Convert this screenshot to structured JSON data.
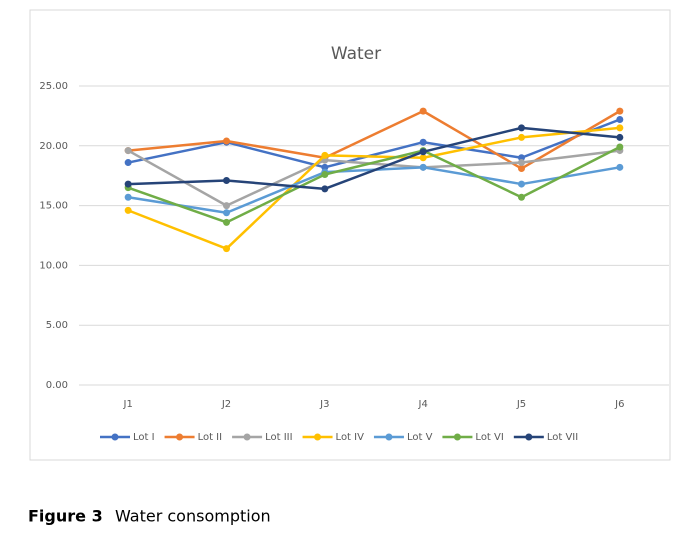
{
  "chart_data": {
    "type": "line",
    "title": "Water",
    "categories": [
      "J1",
      "J2",
      "J3",
      "J4",
      "J5",
      "J6"
    ],
    "series": [
      {
        "name": "Lot I",
        "color": "#4472c4",
        "values": [
          18.6,
          20.3,
          18.2,
          20.3,
          19.0,
          22.2
        ]
      },
      {
        "name": "Lot II",
        "color": "#ed7d31",
        "values": [
          19.6,
          20.4,
          19.0,
          22.9,
          18.1,
          22.9
        ]
      },
      {
        "name": "Lot III",
        "color": "#a5a5a5",
        "values": [
          19.6,
          15.0,
          18.8,
          18.2,
          18.6,
          19.6
        ]
      },
      {
        "name": "Lot IV",
        "color": "#ffc000",
        "values": [
          14.6,
          11.4,
          19.2,
          19.0,
          20.7,
          21.5
        ]
      },
      {
        "name": "Lot V",
        "color": "#5b9bd5",
        "values": [
          15.7,
          14.4,
          17.8,
          18.2,
          16.8,
          18.2
        ]
      },
      {
        "name": "Lot VI",
        "color": "#70ad47",
        "values": [
          16.5,
          13.6,
          17.6,
          19.6,
          15.7,
          19.9
        ]
      },
      {
        "name": "Lot VII",
        "color": "#264478",
        "values": [
          16.8,
          17.1,
          16.4,
          19.5,
          21.5,
          20.7
        ]
      }
    ],
    "ylim": [
      0,
      25
    ],
    "yticks": [
      {
        "value": 0,
        "label": "0.00"
      },
      {
        "value": 5,
        "label": "5.00"
      },
      {
        "value": 10,
        "label": "10.00"
      },
      {
        "value": 15,
        "label": "15.00"
      },
      {
        "value": 20,
        "label": "20.00"
      },
      {
        "value": 25,
        "label": "25.00"
      }
    ],
    "grid": true,
    "legend": "bottom"
  },
  "caption_label": "Figure 3",
  "caption": "Water consomption"
}
